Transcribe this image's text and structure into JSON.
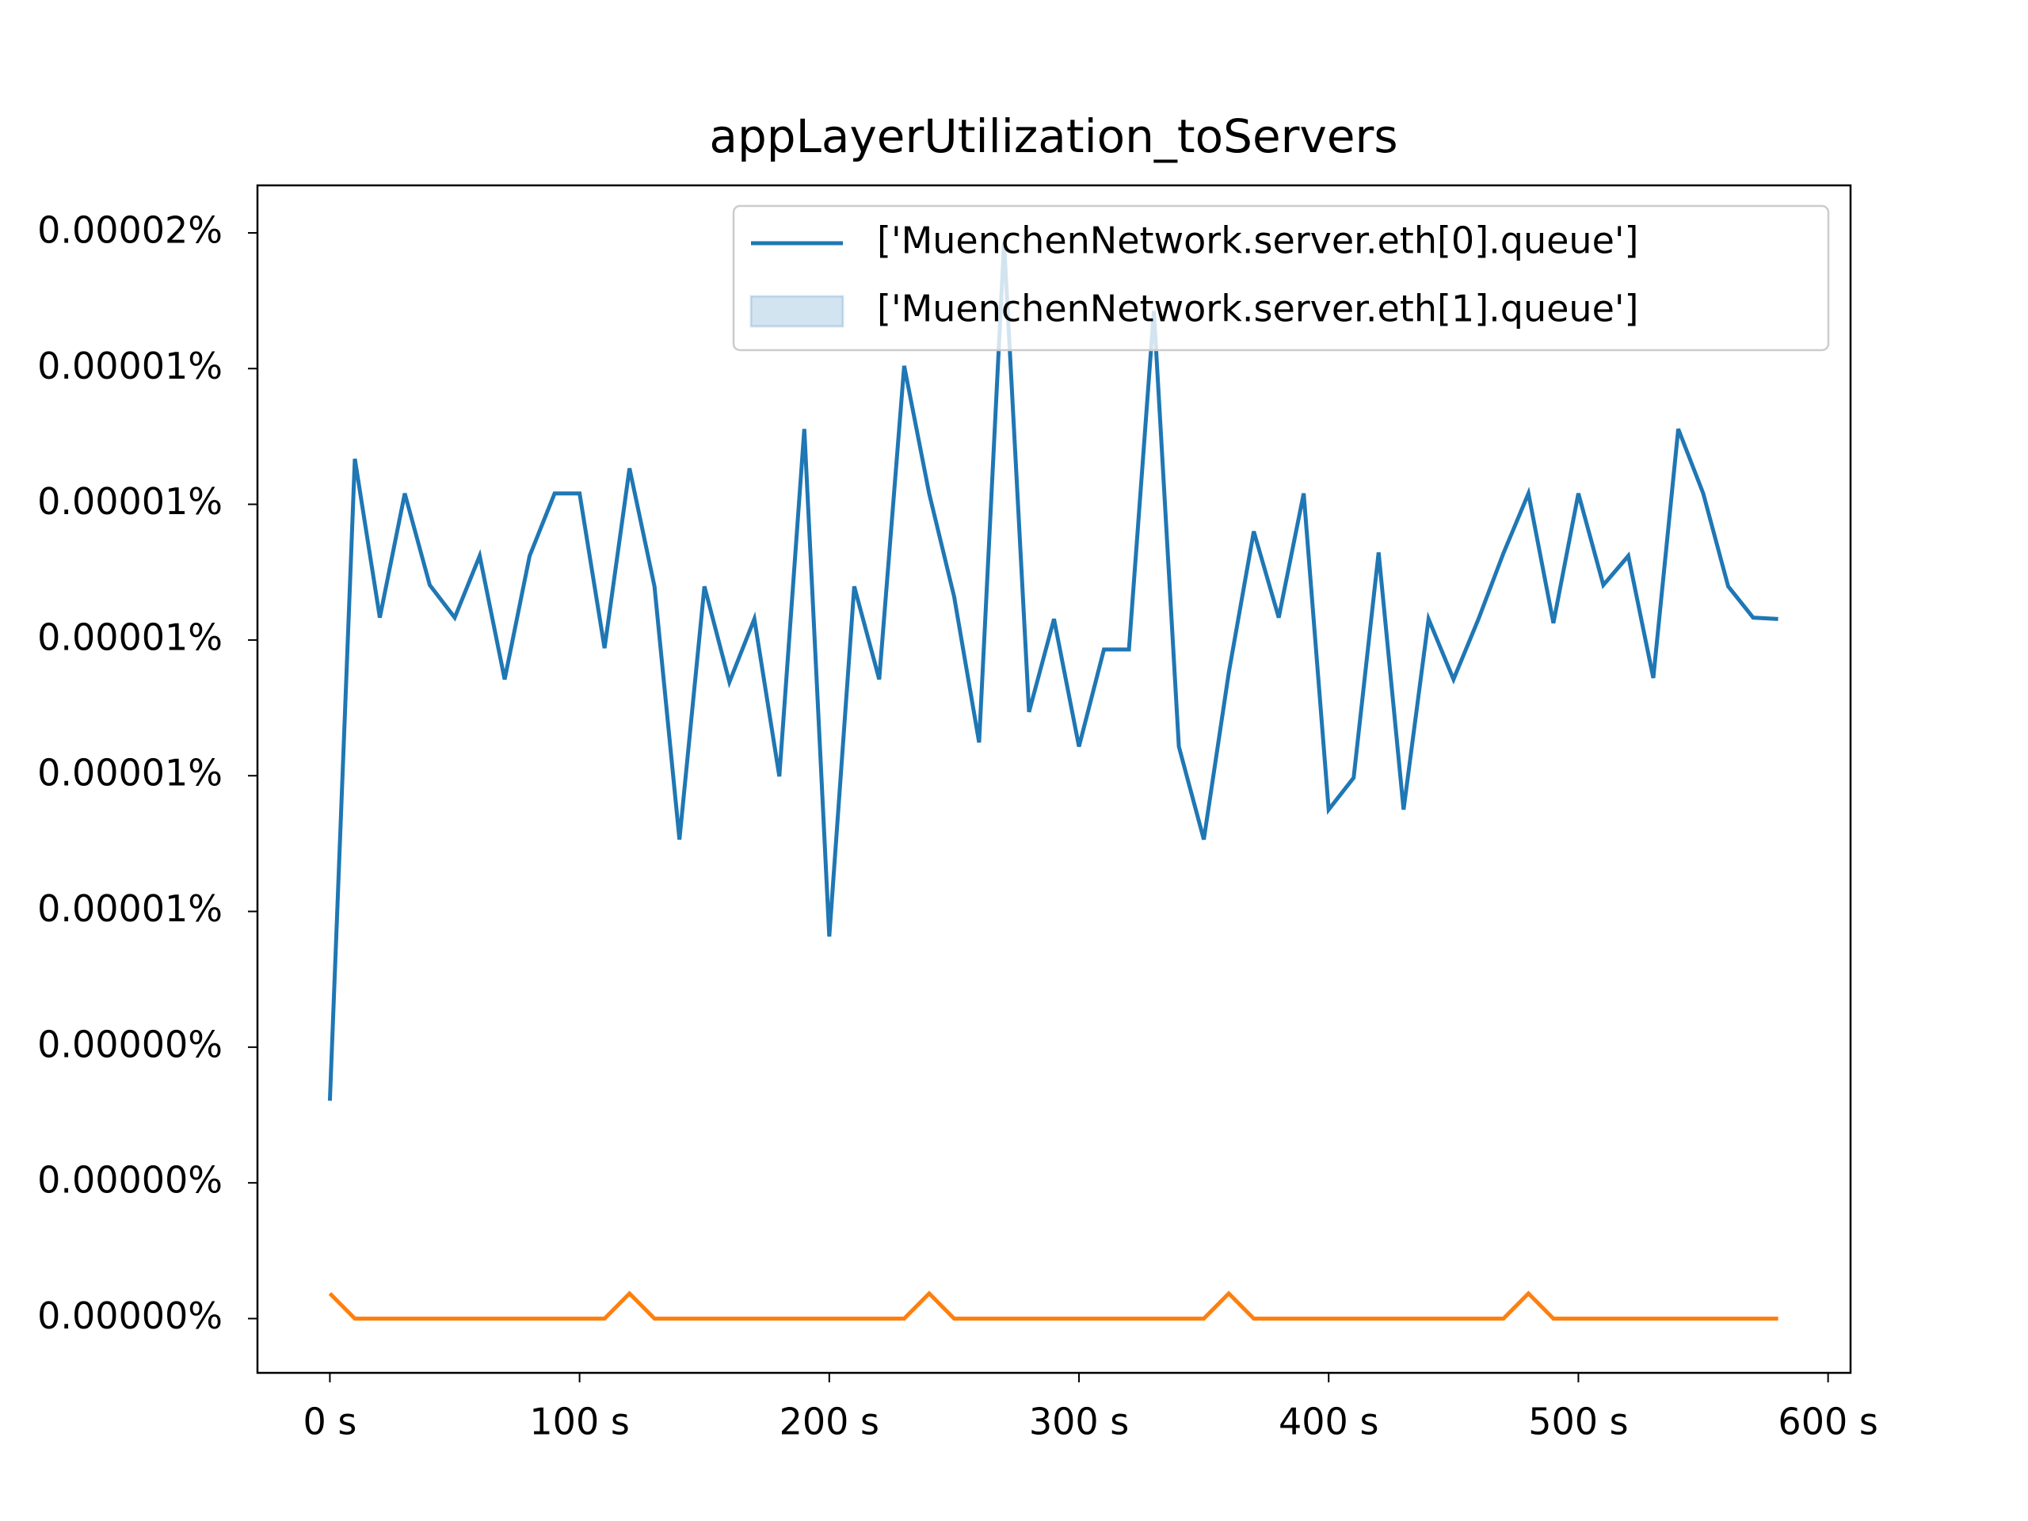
{
  "chart_data": {
    "type": "line",
    "title": "appLayerUtilization_toServers",
    "x": [
      0,
      10,
      20,
      30,
      40,
      50,
      60,
      70,
      80,
      90,
      100,
      110,
      120,
      130,
      140,
      150,
      160,
      170,
      180,
      190,
      200,
      210,
      220,
      230,
      240,
      250,
      260,
      270,
      280,
      290,
      300,
      310,
      320,
      330,
      340,
      350,
      360,
      370,
      380,
      390,
      400,
      410,
      420,
      430,
      440,
      450,
      460,
      470,
      480,
      490,
      500,
      510,
      520,
      530,
      540,
      550,
      560,
      570,
      580
    ],
    "series": [
      {
        "name": "['MuenchenNetwork.server.eth[0].queue']",
        "color": "#1f77b4",
        "values": [
          3.21e-06,
          1.267e-05,
          1.033e-05,
          1.216e-05,
          1.081e-05,
          1.033e-05,
          1.124e-05,
          9.42e-06,
          1.124e-05,
          1.216e-05,
          1.216e-05,
          9.88e-06,
          1.253e-05,
          1.079e-05,
          7.06e-06,
          1.079e-05,
          9.38e-06,
          1.031e-05,
          7.99e-06,
          1.311e-05,
          5.63e-06,
          1.079e-05,
          9.42e-06,
          1.404e-05,
          1.216e-05,
          1.064e-05,
          8.49e-06,
          1.586e-05,
          8.94e-06,
          1.031e-05,
          8.43e-06,
          9.86e-06,
          9.86e-06,
          1.485e-05,
          8.43e-06,
          7.06e-06,
          9.52e-06,
          1.16e-05,
          1.033e-05,
          1.216e-05,
          7.5e-06,
          7.97e-06,
          1.129e-05,
          7.5e-06,
          1.031e-05,
          9.42e-06,
          1.031e-05,
          1.128e-05,
          1.216e-05,
          1.025e-05,
          1.216e-05,
          1.081e-05,
          1.124e-05,
          9.44e-06,
          1.311e-05,
          1.216e-05,
          1.079e-05,
          1.033e-05,
          1.031e-05
        ]
      },
      {
        "name": "['MuenchenNetwork.server.eth[1].queue']",
        "color": "#ff7f0e",
        "values": [
          3.7e-07,
          0,
          0,
          0,
          0,
          0,
          0,
          0,
          0,
          0,
          0,
          0,
          3.7e-07,
          0,
          0,
          0,
          0,
          0,
          0,
          0,
          0,
          0,
          0,
          0,
          3.7e-07,
          0,
          0,
          0,
          0,
          0,
          0,
          0,
          0,
          0,
          0,
          0,
          3.7e-07,
          0,
          0,
          0,
          0,
          0,
          0,
          0,
          0,
          0,
          0,
          0,
          3.7e-07,
          0,
          0,
          0,
          0,
          0,
          0,
          0,
          0,
          0,
          0
        ]
      }
    ],
    "xlim": [
      -29,
      609
    ],
    "ylim": [
      -8e-07,
      1.67e-05
    ],
    "xticks": [
      {
        "value": 0,
        "label": "0 s"
      },
      {
        "value": 100,
        "label": "100 s"
      },
      {
        "value": 200,
        "label": "200 s"
      },
      {
        "value": 300,
        "label": "300 s"
      },
      {
        "value": 400,
        "label": "400 s"
      },
      {
        "value": 500,
        "label": "500 s"
      },
      {
        "value": 600,
        "label": "600 s"
      }
    ],
    "yticks": [
      {
        "value": 0,
        "label": "0.00000%"
      },
      {
        "value": 2e-06,
        "label": "0.00000%"
      },
      {
        "value": 4e-06,
        "label": "0.00000%"
      },
      {
        "value": 6e-06,
        "label": "0.00001%"
      },
      {
        "value": 8e-06,
        "label": "0.00001%"
      },
      {
        "value": 1e-05,
        "label": "0.00001%"
      },
      {
        "value": 1.2e-05,
        "label": "0.00001%"
      },
      {
        "value": 1.4e-05,
        "label": "0.00001%"
      },
      {
        "value": 1.6e-05,
        "label": "0.00002%"
      }
    ],
    "grid": false,
    "legend": "upper right"
  }
}
